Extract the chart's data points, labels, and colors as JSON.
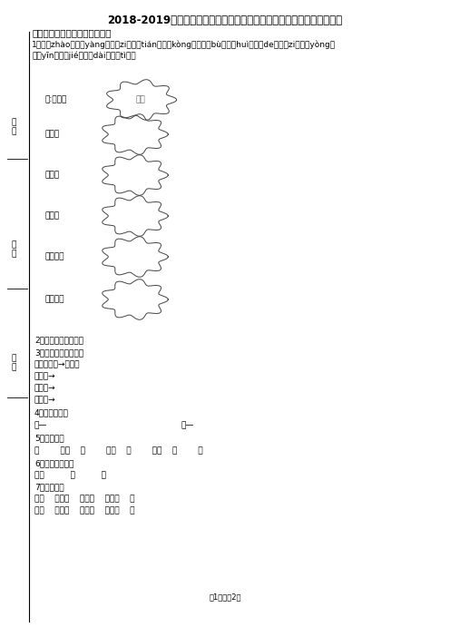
{
  "title": "2018-2019年邳州市邳城镇中心小学一年级上册语文模拟期末考试无答案",
  "section1": "一、想一想，填一填（填空题）",
  "line1": "1．照（zhào）样（yàng）子（zi）填（tián）空（kòng），不（bù）会（huì）的（de）字（zi）用（yòng）",
  "line2": "音（yīn）节（jié）代（dài）替（tì），",
  "example_label": "例:浓浓的",
  "example_text": "香气",
  "cloud_labels": [
    "甜甜的",
    "酸酸的",
    "白白的",
    "热乎乎的",
    "金灿灿的"
  ],
  "q2": "2．洞的笔画顺序是：",
  "q3": "3．照样子，做一做。",
  "q3_example": "例：亻＋门→（他）",
  "q3_a": "日＋十→",
  "q3_b": "口＋十→",
  "q3_c": "丁＋口→",
  "q4": "4．写反义词。",
  "q4_a": "死—",
  "q4_b": "外—",
  "q5": "5．填一填。",
  "q5_line": "一        黄牛    一        花猫    一        鸭子    一        鸟",
  "q6": "6．一字组多词。",
  "q6_line": "动：          、          。",
  "q7": "7．组词语。",
  "q7_line1": "林（    ）从（    ）品（    ）双（    ）",
  "q7_line2": "森（    ）众（    ）晶（    ）朋（    ）",
  "footer": "第1页，共2页",
  "left_label1": "分数",
  "left_label2": "姓名",
  "left_label3": "题号",
  "bg_color": "#ffffff",
  "text_color": "#000000",
  "font_size": 7.0,
  "title_font_size": 8.5
}
